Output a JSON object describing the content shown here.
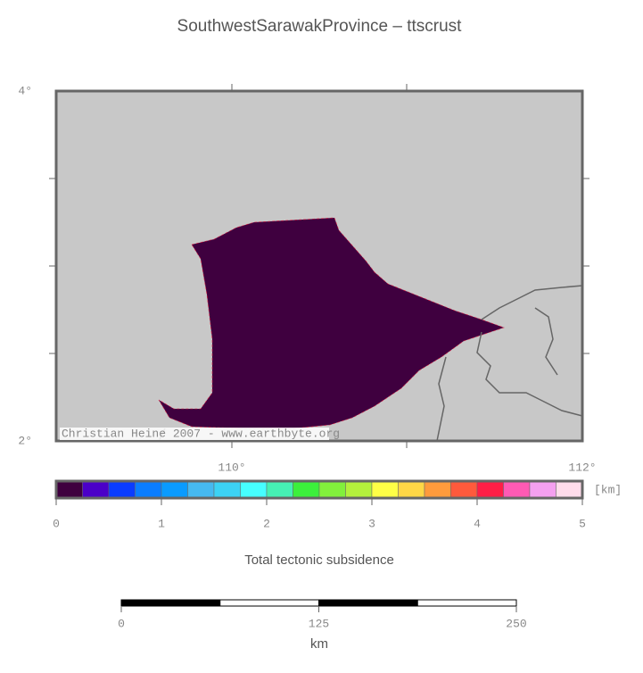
{
  "title": "SouthwestSarawakProvince – ttscrust",
  "map": {
    "lat_labels": [
      "4°",
      "2°"
    ],
    "lon_labels": [
      "110°",
      "112°"
    ],
    "credit": "Christian Heine 2007 - www.earthbyte.org"
  },
  "colorbar": {
    "colors": [
      "#3f003f",
      "#4b00c8",
      "#0a3cff",
      "#0a7dff",
      "#0a9bff",
      "#46b9f0",
      "#3cd2f5",
      "#46ffff",
      "#46f0b4",
      "#3cf03c",
      "#82f03c",
      "#b4f03c",
      "#ffff46",
      "#ffd746",
      "#ff9b3c",
      "#ff5a3c",
      "#ff1e46",
      "#ff5ab4",
      "#f5a0f0",
      "#ffdceb"
    ],
    "ticks": [
      0,
      1,
      2,
      3,
      4,
      5
    ],
    "unit": "[km]",
    "label": "Total tectonic subsidence"
  },
  "scalebar": {
    "ticks": [
      0,
      125,
      250
    ],
    "unit": "km"
  }
}
